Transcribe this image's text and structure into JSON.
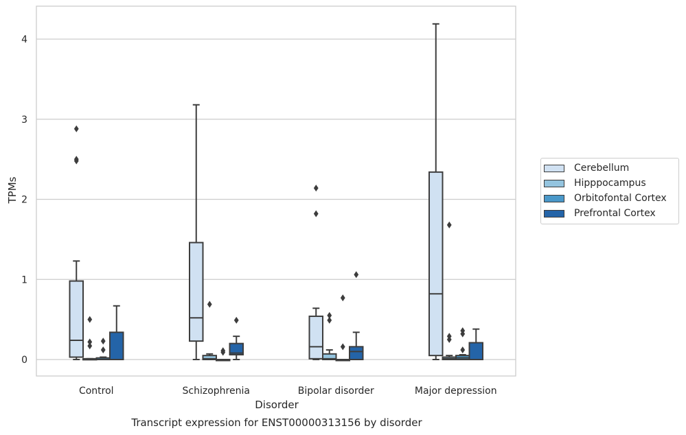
{
  "chart_data": {
    "type": "boxplot",
    "xlabel": "Disorder",
    "ylabel": "TPMs",
    "caption": "Transcript expression for ENST00000313156 by disorder",
    "categories": [
      "Control",
      "Schizophrenia",
      "Bipolar disorder",
      "Major depression"
    ],
    "ylim": [
      -0.2,
      4.4
    ],
    "yticks": [
      0,
      1,
      2,
      3,
      4
    ],
    "grid": "horizontal",
    "legend_position": "right",
    "series": [
      {
        "name": "Cerebellum",
        "color": "#d0e1f2",
        "boxes": [
          {
            "whislo": 0.0,
            "q1": 0.03,
            "med": 0.24,
            "q3": 0.98,
            "whishi": 1.23,
            "fliers": [
              2.48,
              2.5,
              2.88
            ]
          },
          {
            "whislo": 0.0,
            "q1": 0.23,
            "med": 0.52,
            "q3": 1.46,
            "whishi": 3.18,
            "fliers": []
          },
          {
            "whislo": 0.0,
            "q1": 0.01,
            "med": 0.16,
            "q3": 0.54,
            "whishi": 0.64,
            "fliers": [
              1.82,
              2.14
            ]
          },
          {
            "whislo": 0.0,
            "q1": 0.05,
            "med": 0.82,
            "q3": 2.34,
            "whishi": 4.19,
            "fliers": []
          }
        ]
      },
      {
        "name": "Hipppocampus",
        "color": "#94c4df",
        "boxes": [
          {
            "whislo": 0.0,
            "q1": 0.0,
            "med": 0.0,
            "q3": 0.01,
            "whishi": 0.01,
            "fliers": [
              0.17,
              0.22,
              0.5
            ]
          },
          {
            "whislo": 0.0,
            "q1": 0.0,
            "med": 0.01,
            "q3": 0.05,
            "whishi": 0.07,
            "fliers": [
              0.69
            ]
          },
          {
            "whislo": 0.0,
            "q1": 0.0,
            "med": 0.01,
            "q3": 0.07,
            "whishi": 0.12,
            "fliers": [
              0.49,
              0.55
            ]
          },
          {
            "whislo": 0.0,
            "q1": 0.0,
            "med": 0.01,
            "q3": 0.03,
            "whishi": 0.05,
            "fliers": [
              0.25,
              0.29,
              1.68
            ]
          }
        ]
      },
      {
        "name": "Orbitofontal Cortex",
        "color": "#4a98c9",
        "boxes": [
          {
            "whislo": 0.0,
            "q1": 0.0,
            "med": 0.0,
            "q3": 0.02,
            "whishi": 0.03,
            "fliers": [
              0.12,
              0.23
            ]
          },
          {
            "whislo": 0.0,
            "q1": 0.0,
            "med": 0.0,
            "q3": 0.0,
            "whishi": 0.0,
            "fliers": [
              0.09,
              0.11
            ]
          },
          {
            "whislo": 0.0,
            "q1": 0.0,
            "med": 0.0,
            "q3": 0.0,
            "whishi": 0.0,
            "fliers": [
              0.16,
              0.77
            ]
          },
          {
            "whislo": 0.0,
            "q1": 0.0,
            "med": 0.02,
            "q3": 0.05,
            "whishi": 0.06,
            "fliers": [
              0.12,
              0.32,
              0.36
            ]
          }
        ]
      },
      {
        "name": "Prefrontal Cortex",
        "color": "#2464a8",
        "boxes": [
          {
            "whislo": 0.0,
            "q1": 0.0,
            "med": 0.0,
            "q3": 0.34,
            "whishi": 0.67,
            "fliers": []
          },
          {
            "whislo": 0.0,
            "q1": 0.06,
            "med": 0.08,
            "q3": 0.2,
            "whishi": 0.29,
            "fliers": [
              0.49
            ]
          },
          {
            "whislo": 0.0,
            "q1": 0.0,
            "med": 0.1,
            "q3": 0.16,
            "whishi": 0.34,
            "fliers": [
              1.06
            ]
          },
          {
            "whislo": 0.0,
            "q1": 0.0,
            "med": 0.0,
            "q3": 0.21,
            "whishi": 0.38,
            "fliers": []
          }
        ]
      }
    ]
  }
}
